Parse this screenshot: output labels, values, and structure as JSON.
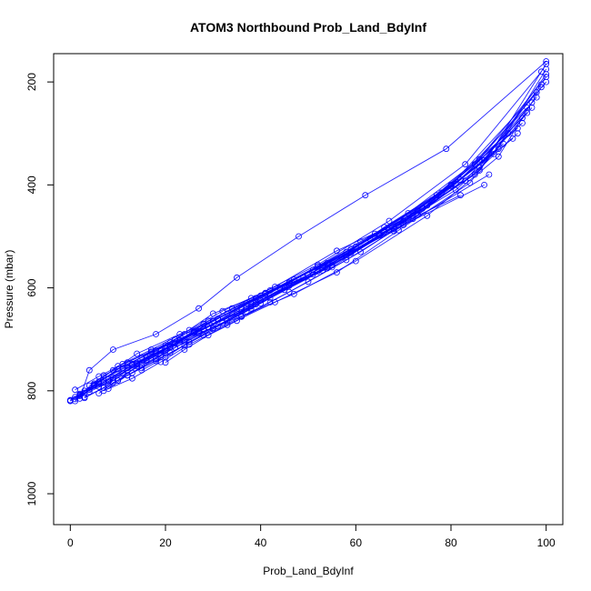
{
  "chart_data": {
    "type": "line",
    "title": "ATOM3 Northbound Prob_Land_BdyInf",
    "xlabel": "Prob_Land_BdyInf",
    "ylabel": "Pressure (mbar)",
    "xlim": [
      -3.5,
      103.5
    ],
    "ylim": [
      1060,
      145
    ],
    "y_inverted": true,
    "x_ticks": [
      0,
      20,
      40,
      60,
      80,
      100
    ],
    "y_ticks": [
      200,
      400,
      600,
      800,
      1000
    ],
    "grid": false,
    "legend": "none",
    "marker": "open-circle",
    "color": "#0000ff",
    "series": [
      {
        "x": [
          1,
          5,
          12,
          22,
          30,
          41,
          55,
          70,
          85,
          97
        ],
        "y": [
          820,
          790,
          745,
          700,
          650,
          610,
          560,
          470,
          380,
          250
        ]
      },
      {
        "x": [
          2,
          4,
          9,
          18,
          27,
          35,
          48,
          62,
          79,
          100
        ],
        "y": [
          815,
          760,
          720,
          690,
          640,
          580,
          500,
          420,
          330,
          160
        ]
      },
      {
        "x": [
          0,
          3,
          7,
          15,
          24,
          33,
          44,
          58,
          73,
          92
        ],
        "y": [
          818,
          800,
          770,
          735,
          690,
          650,
          600,
          530,
          450,
          300
        ]
      },
      {
        "x": [
          6,
          10,
          16,
          21,
          28,
          38,
          52,
          67,
          83,
          99
        ],
        "y": [
          805,
          780,
          740,
          715,
          670,
          620,
          555,
          470,
          360,
          180
        ]
      },
      {
        "x": [
          3,
          8,
          13,
          19,
          26,
          34,
          46,
          60,
          77,
          94
        ],
        "y": [
          812,
          790,
          765,
          730,
          685,
          640,
          590,
          520,
          420,
          290
        ]
      },
      {
        "x": [
          1,
          6,
          11,
          20,
          29,
          37,
          50,
          64,
          80,
          98
        ],
        "y": [
          798,
          772,
          748,
          712,
          676,
          630,
          575,
          495,
          400,
          220
        ]
      },
      {
        "x": [
          4,
          9,
          14,
          23,
          31,
          42,
          57,
          71,
          86,
          100
        ],
        "y": [
          790,
          760,
          728,
          690,
          660,
          605,
          540,
          455,
          350,
          200
        ]
      },
      {
        "x": [
          2,
          5,
          10,
          17,
          25,
          32,
          43,
          56,
          72,
          90
        ],
        "y": [
          808,
          788,
          752,
          720,
          682,
          645,
          598,
          528,
          460,
          330
        ]
      },
      {
        "x": [
          8,
          12,
          18,
          24,
          32,
          40,
          53,
          66,
          82,
          96
        ],
        "y": [
          796,
          770,
          738,
          705,
          668,
          624,
          566,
          482,
          390,
          260
        ]
      },
      {
        "x": [
          0,
          2,
          6,
          13,
          22,
          30,
          39,
          51,
          68,
          88
        ],
        "y": [
          820,
          808,
          782,
          748,
          708,
          664,
          620,
          565,
          490,
          380
        ]
      },
      {
        "x": [
          5,
          11,
          17,
          26,
          35,
          45,
          59,
          74,
          89,
          100
        ],
        "y": [
          786,
          756,
          724,
          686,
          650,
          598,
          532,
          446,
          340,
          175
        ]
      },
      {
        "x": [
          3,
          7,
          12,
          18,
          26,
          36,
          47,
          61,
          76,
          93
        ],
        "y": [
          814,
          794,
          760,
          728,
          688,
          642,
          584,
          510,
          430,
          310
        ]
      },
      {
        "x": [
          10,
          14,
          20,
          27,
          36,
          47,
          60,
          75,
          90,
          99
        ],
        "y": [
          780,
          752,
          722,
          688,
          655,
          612,
          548,
          460,
          345,
          210
        ]
      },
      {
        "x": [
          1,
          4,
          9,
          16,
          23,
          31,
          41,
          54,
          70,
          87
        ],
        "y": [
          816,
          798,
          774,
          742,
          702,
          660,
          612,
          552,
          478,
          400
        ]
      },
      {
        "x": [
          7,
          13,
          19,
          25,
          33,
          43,
          56,
          69,
          84,
          97
        ],
        "y": [
          800,
          776,
          744,
          710,
          672,
          628,
          570,
          488,
          396,
          240
        ]
      },
      {
        "x": [
          2,
          6,
          12,
          19,
          27,
          38,
          49,
          63,
          78,
          95
        ],
        "y": [
          806,
          786,
          756,
          722,
          684,
          636,
          580,
          505,
          415,
          280
        ]
      },
      {
        "x": [
          15,
          20,
          25,
          31,
          38,
          46,
          58,
          70,
          85,
          100
        ],
        "y": [
          760,
          735,
          705,
          675,
          640,
          596,
          540,
          470,
          360,
          190
        ]
      },
      {
        "x": [
          0,
          3,
          8,
          14,
          21,
          29,
          40,
          52,
          65,
          82
        ],
        "y": [
          819,
          804,
          778,
          746,
          706,
          664,
          615,
          558,
          495,
          420
        ]
      },
      {
        "x": [
          4,
          9,
          15,
          22,
          30,
          39,
          51,
          65,
          80,
          96
        ],
        "y": [
          802,
          780,
          750,
          716,
          678,
          632,
          574,
          498,
          402,
          250
        ]
      },
      {
        "x": [
          12,
          18,
          24,
          30,
          37,
          45,
          55,
          67,
          81,
          94
        ],
        "y": [
          770,
          742,
          712,
          680,
          646,
          604,
          556,
          488,
          410,
          300
        ]
      },
      {
        "x": [
          1,
          5,
          10,
          18,
          28,
          40,
          54,
          69,
          86,
          100
        ],
        "y": [
          812,
          790,
          758,
          722,
          680,
          630,
          560,
          478,
          372,
          165
        ]
      },
      {
        "x": [
          6,
          11,
          16,
          24,
          33,
          42,
          54,
          68,
          83,
          98
        ],
        "y": [
          792,
          766,
          736,
          702,
          664,
          620,
          562,
          486,
          392,
          230
        ]
      },
      {
        "x": [
          2,
          7,
          13,
          20,
          28,
          36,
          46,
          59,
          75,
          91
        ],
        "y": [
          810,
          784,
          750,
          718,
          680,
          638,
          590,
          524,
          440,
          320
        ]
      },
      {
        "x": [
          20,
          24,
          29,
          35,
          42,
          50,
          61,
          73,
          87,
          99
        ],
        "y": [
          745,
          720,
          692,
          664,
          628,
          588,
          530,
          458,
          352,
          205
        ]
      },
      {
        "x": [
          3,
          8,
          14,
          21,
          29,
          39,
          52,
          66,
          81,
          95
        ],
        "y": [
          804,
          782,
          748,
          714,
          676,
          628,
          568,
          492,
          398,
          270
        ]
      },
      {
        "x": [
          9,
          15,
          21,
          28,
          36,
          46,
          58,
          72,
          86,
          100
        ],
        "y": [
          784,
          756,
          726,
          692,
          656,
          608,
          546,
          466,
          366,
          185
        ]
      }
    ]
  }
}
